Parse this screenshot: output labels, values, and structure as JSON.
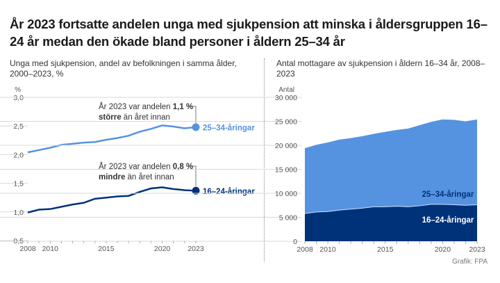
{
  "title": "År 2023 fortsatte andelen unga med sjukpension att minska i åldersgruppen 16–24 år medan den ökade bland personer i åldern 25–34 år",
  "credit": "Grafik: FPA",
  "colors": {
    "light": "#5593e0",
    "dark": "#00327a",
    "grid": "#d9d9d9"
  },
  "chart_data": [
    {
      "type": "line",
      "subtitle": "Unga med sjukpension, andel av befolkningen i samma ålder, 2000–2023, %",
      "ylabel": "%",
      "ylim": [
        0.5,
        3.0
      ],
      "yticks": [
        "0,5",
        "1,0",
        "1,5",
        "2,0",
        "2,5",
        "3,0"
      ],
      "xticks": [
        "2008",
        "2010",
        "2015",
        "2020",
        "2023"
      ],
      "x": [
        2008,
        2009,
        2010,
        2011,
        2012,
        2013,
        2014,
        2015,
        2016,
        2017,
        2018,
        2019,
        2020,
        2021,
        2022,
        2023
      ],
      "series": [
        {
          "name": "25–34-åringar",
          "values": [
            2.04,
            2.08,
            2.12,
            2.17,
            2.19,
            2.21,
            2.22,
            2.26,
            2.29,
            2.33,
            2.4,
            2.45,
            2.51,
            2.49,
            2.46,
            2.48
          ]
        },
        {
          "name": "16–24-åringar",
          "values": [
            0.99,
            1.04,
            1.05,
            1.09,
            1.13,
            1.16,
            1.23,
            1.25,
            1.27,
            1.28,
            1.35,
            1.41,
            1.43,
            1.4,
            1.38,
            1.37
          ]
        }
      ],
      "annotations": [
        {
          "text": "År 2023 var andelen ",
          "bold": "1,1 %",
          "text2": "större",
          "text3": " än året innan"
        },
        {
          "text": "År 2023 var andelen ",
          "bold": "0,8 %",
          "text2": "mindre",
          "text3": " än året innan"
        }
      ]
    },
    {
      "type": "area",
      "stacked": true,
      "subtitle": "Antal mottagare av sjukpension i åldern 16–34 år, 2008–2023",
      "ylabel": "Antal",
      "ylim": [
        0,
        30000
      ],
      "yticks": [
        "0",
        "5 000",
        "10 000",
        "15 000",
        "20 000",
        "25 000",
        "30 000"
      ],
      "xticks": [
        "2008",
        "2010",
        "2015",
        "2020",
        "2023"
      ],
      "x": [
        2008,
        2009,
        2010,
        2011,
        2012,
        2013,
        2014,
        2015,
        2016,
        2017,
        2018,
        2019,
        2020,
        2021,
        2022,
        2023
      ],
      "series": [
        {
          "name": "16–24-åringar",
          "values": [
            5800,
            6100,
            6200,
            6500,
            6700,
            6900,
            7200,
            7200,
            7300,
            7200,
            7400,
            7700,
            7700,
            7600,
            7500,
            7600
          ]
        },
        {
          "name": "25–34-åringar",
          "values": [
            13600,
            14000,
            14400,
            14700,
            14800,
            15000,
            15200,
            15600,
            15900,
            16300,
            16800,
            17200,
            17700,
            17700,
            17500,
            17800
          ]
        }
      ]
    }
  ]
}
